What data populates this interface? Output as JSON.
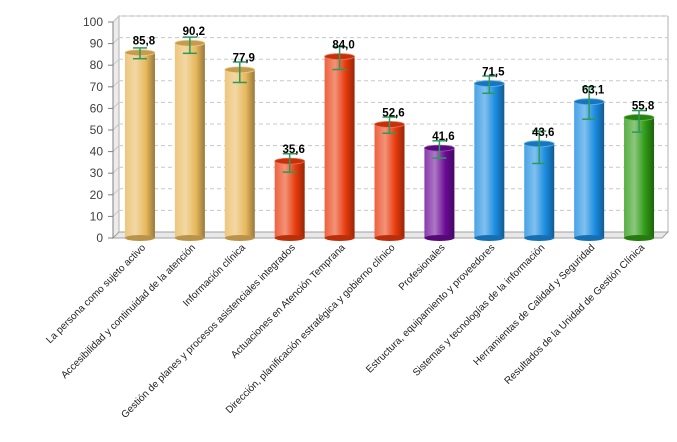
{
  "chart_data": {
    "type": "bar",
    "title": "",
    "xlabel": "",
    "ylabel": "",
    "ylim": [
      0,
      100
    ],
    "yticks": [
      0,
      10,
      20,
      30,
      40,
      50,
      60,
      70,
      80,
      90,
      100
    ],
    "grid": true,
    "categories": [
      "La persona como sujeto activo",
      "Accesibilidad y continuidad de la atención",
      "Información clínica",
      "Gestión de planes y procesos asistenciales integrados",
      "Actuaciones en Atención Temprana",
      "Dirección, planificación estratégica y gobierno clínico",
      "Profesionales",
      "Estructura, equipamiento y proveedores",
      "Sistemas y tecnologías de la información",
      "Herramientas de Calidad y Seguridad",
      "Resultados de la Unidad de Gestión Clínica"
    ],
    "values": [
      85.8,
      90.2,
      77.9,
      35.6,
      84.0,
      52.6,
      41.6,
      71.5,
      43.6,
      63.1,
      55.8
    ],
    "value_labels": [
      "85,8",
      "90,2",
      "77,9",
      "35,6",
      "84,0",
      "52,6",
      "41,6",
      "71,5",
      "43,6",
      "63,1",
      "55,8"
    ],
    "error_low": [
      83.0,
      85.5,
      72.0,
      30.5,
      78.0,
      48.5,
      37.0,
      67.0,
      34.5,
      55.0,
      49.0
    ],
    "error_high": [
      88.0,
      93.0,
      81.5,
      39.0,
      88.5,
      56.0,
      45.0,
      75.0,
      49.5,
      70.0,
      59.0
    ],
    "bar_colors": [
      "#e8b85c",
      "#e8b85c",
      "#e8b85c",
      "#e83a0c",
      "#e83a0c",
      "#e83a0c",
      "#6a0a96",
      "#1a8ce0",
      "#1a8ce0",
      "#1a8ce0",
      "#2e9a14"
    ],
    "error_color": "#2a9a5a"
  }
}
